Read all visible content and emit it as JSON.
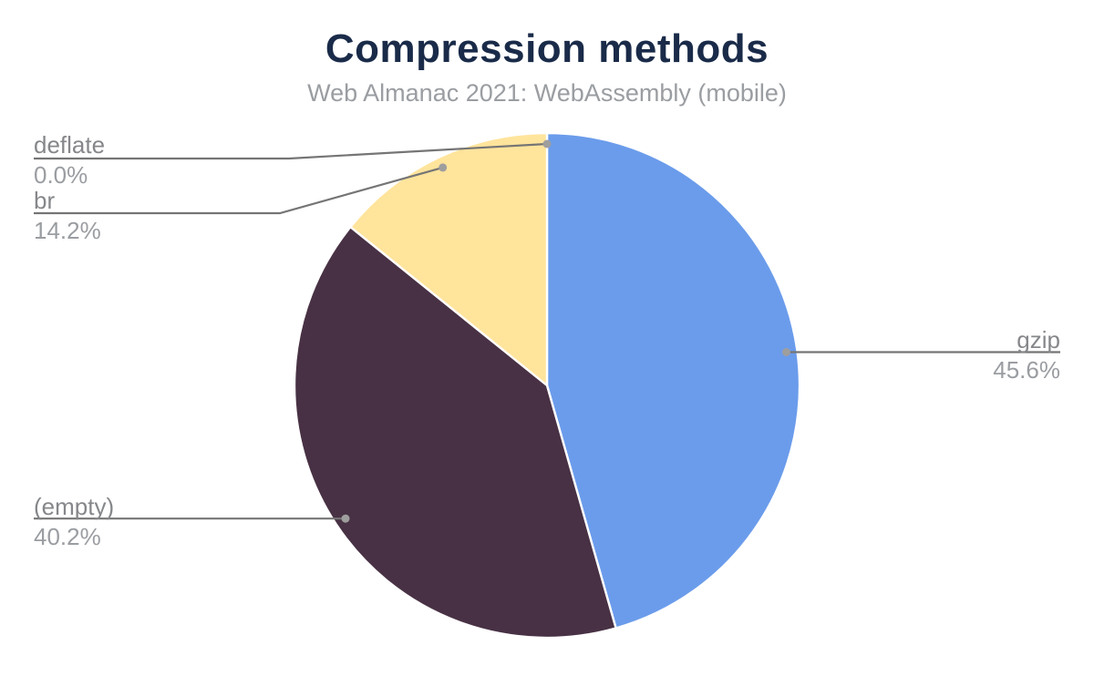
{
  "page": {
    "background": "#ffffff"
  },
  "header": {
    "title": "Compression methods",
    "subtitle": "Web Almanac 2021: WebAssembly (mobile)",
    "title_color": "#1a2b49",
    "subtitle_color": "#9a9da1"
  },
  "chart_data": {
    "type": "pie",
    "title": "Compression methods",
    "subtitle": "Web Almanac 2021: WebAssembly (mobile)",
    "unit": "%",
    "direction": "clockwise",
    "start_angle_deg": 0,
    "legend_position": "none",
    "labels_style": "outside-callouts",
    "slices": [
      {
        "label": "gzip",
        "value": 45.6,
        "pct_label": "45.6%",
        "color": "#6b9ceb"
      },
      {
        "label": "(empty)",
        "value": 40.2,
        "pct_label": "40.2%",
        "color": "#483144"
      },
      {
        "label": "br",
        "value": 14.2,
        "pct_label": "14.2%",
        "color": "#ffe49c"
      },
      {
        "label": "deflate",
        "value": 0.0,
        "pct_label": "0.0%",
        "color": null
      }
    ],
    "slice_border_color": "#ffffff",
    "leader_line_color": "#757575",
    "leader_dot_color": "#9e9e9e",
    "label_name_color": "#85878a",
    "label_pct_color": "#9a9da1"
  }
}
